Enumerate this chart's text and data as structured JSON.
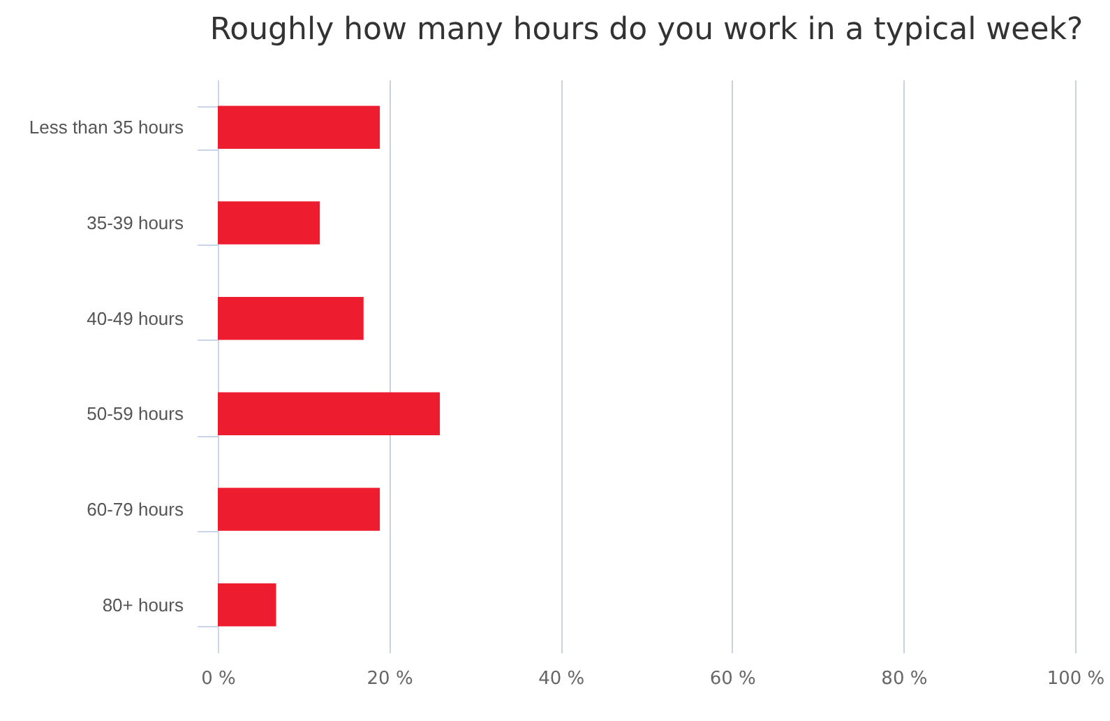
{
  "chart_data": {
    "type": "bar",
    "orientation": "horizontal",
    "title": "Roughly how many hours do you work in a typical week?",
    "categories": [
      "Less than 35 hours",
      "35-39 hours",
      "40-49 hours",
      "50-59 hours",
      "60-79 hours",
      "80+ hours"
    ],
    "values": [
      18.9,
      11.9,
      17.0,
      25.9,
      18.9,
      6.8
    ],
    "color": "#ed1c2e",
    "xlim": [
      0,
      100
    ],
    "xticks": [
      {
        "value": 0,
        "label": "0 %"
      },
      {
        "value": 20,
        "label": "20 %"
      },
      {
        "value": 40,
        "label": "40 %"
      },
      {
        "value": 60,
        "label": "60 %"
      },
      {
        "value": 80,
        "label": "80 %"
      },
      {
        "value": 100,
        "label": "100 %"
      }
    ],
    "grid": "x"
  }
}
